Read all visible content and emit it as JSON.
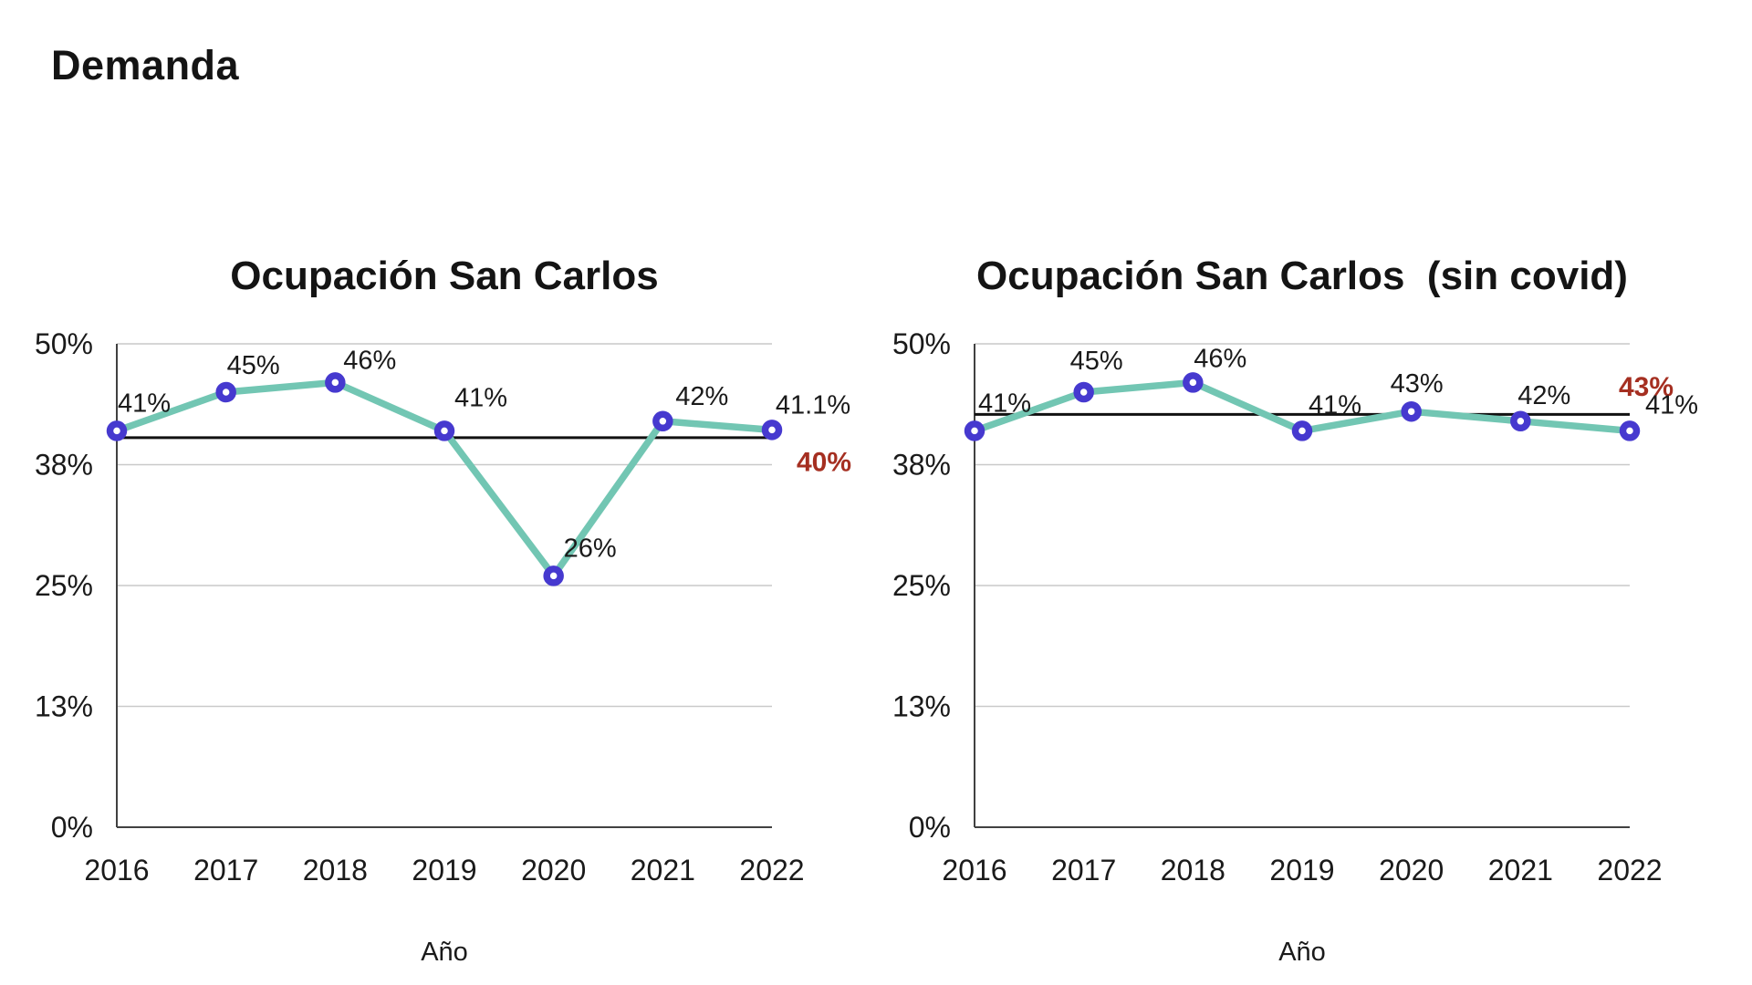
{
  "page": {
    "title": "Demanda"
  },
  "colors": {
    "line": "#72C6B3",
    "marker": "#4639CF",
    "marker_fill": "#ffffff",
    "reference_line": "#111111",
    "reference_label": "#A52F21",
    "grid": "#c9c9c9",
    "axis": "#414141",
    "text": "#1a1a1a"
  },
  "chart_data": [
    {
      "type": "line",
      "title": "Ocupación San Carlos",
      "xlabel": "Año",
      "ylabel": "",
      "categories": [
        "2016",
        "2017",
        "2018",
        "2019",
        "2020",
        "2021",
        "2022"
      ],
      "series": [
        {
          "name": "Ocupación",
          "values": [
            41,
            45,
            46,
            41,
            26,
            42,
            41.1
          ]
        }
      ],
      "point_labels": [
        "41%",
        "45%",
        "46%",
        "41%",
        "26%",
        "42%",
        "41.1%"
      ],
      "reference_line": {
        "value": 40.3,
        "label": "40%"
      },
      "ylim": [
        0,
        50
      ],
      "yticks": [
        {
          "value": 0,
          "label": "0%"
        },
        {
          "value": 12.5,
          "label": "13%"
        },
        {
          "value": 25,
          "label": "25%"
        },
        {
          "value": 37.5,
          "label": "38%"
        },
        {
          "value": 50,
          "label": "50%"
        }
      ],
      "grid": true,
      "legend": "none"
    },
    {
      "type": "line",
      "title": "Ocupación San Carlos  (sin covid)",
      "xlabel": "Año",
      "ylabel": "",
      "categories": [
        "2016",
        "2017",
        "2018",
        "2019",
        "2020",
        "2021",
        "2022"
      ],
      "series": [
        {
          "name": "Ocupación sin covid",
          "values": [
            41,
            45,
            46,
            41,
            43,
            42,
            41
          ]
        }
      ],
      "point_labels": [
        "41%",
        "45%",
        "46%",
        "41%",
        "43%",
        "42%",
        "41%"
      ],
      "reference_line": {
        "value": 42.7,
        "label": "43%"
      },
      "ylim": [
        0,
        50
      ],
      "yticks": [
        {
          "value": 0,
          "label": "0%"
        },
        {
          "value": 12.5,
          "label": "13%"
        },
        {
          "value": 25,
          "label": "25%"
        },
        {
          "value": 37.5,
          "label": "38%"
        },
        {
          "value": 50,
          "label": "50%"
        }
      ],
      "grid": true,
      "legend": "none"
    }
  ]
}
